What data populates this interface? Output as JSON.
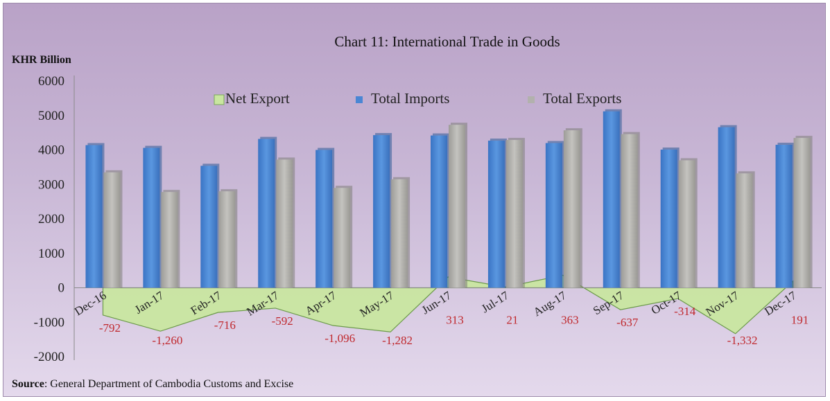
{
  "chart_data": {
    "type": "bar",
    "title": "Chart 11: International Trade in Goods",
    "ylabel": "KHR Billion",
    "source_label": "Source",
    "source_text": ": General Department of Cambodia Customs and Excise",
    "ylim": [
      -2000,
      6000
    ],
    "yticks": [
      6000,
      5000,
      4000,
      3000,
      2000,
      1000,
      0,
      -1000,
      -2000
    ],
    "categories": [
      "Dec-16",
      "Jan-17",
      "Feb-17",
      "Mar-17",
      "Apr-17",
      "May-17",
      "Jun-17",
      "Jul-17",
      "Aug-17",
      "Sep-17",
      "Oct-17",
      "Nov-17",
      "Dec-17"
    ],
    "legend_position": "top",
    "grid": false,
    "series": [
      {
        "name": "Net Export",
        "kind": "area",
        "color": "#c9e6a0",
        "values": [
          -792,
          -1260,
          -716,
          -592,
          -1096,
          -1282,
          313,
          21,
          363,
          -637,
          -314,
          -1332,
          191
        ],
        "labels": [
          "-792",
          "-1,260",
          "-716",
          "-592",
          "-1,096",
          "-1,282",
          "313",
          "21",
          "363",
          "-637",
          "-314",
          "-1,332",
          "191"
        ]
      },
      {
        "name": "Total Imports",
        "kind": "bar",
        "color": "#4a86d4",
        "values": [
          4140,
          4060,
          3540,
          4320,
          4000,
          4430,
          4420,
          4270,
          4200,
          5120,
          4010,
          4660,
          4150
        ]
      },
      {
        "name": "Total Exports",
        "kind": "bar",
        "color": "#b2b1ad",
        "values": [
          3350,
          2780,
          2800,
          3720,
          2900,
          3150,
          4730,
          4290,
          4570,
          4460,
          3700,
          3320,
          4350
        ]
      }
    ]
  }
}
